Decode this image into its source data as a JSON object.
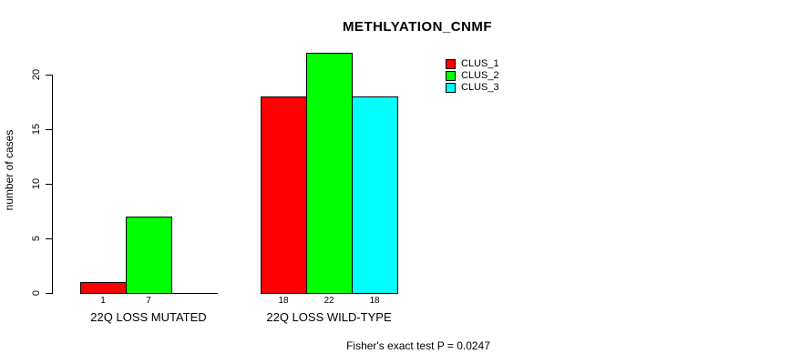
{
  "chart_data": {
    "type": "bar",
    "title": "METHLYATION_CNMF",
    "ylabel": "number of cases",
    "xlabel": "",
    "annotation": "Fisher's exact test P = 0.0247",
    "categories": [
      "22Q LOSS MUTATED",
      "22Q LOSS WILD-TYPE"
    ],
    "series": [
      {
        "name": "CLUS_1",
        "color": "#ff0000",
        "values": [
          1,
          18
        ]
      },
      {
        "name": "CLUS_2",
        "color": "#00ff00",
        "values": [
          7,
          22
        ]
      },
      {
        "name": "CLUS_3",
        "color": "#00ffff",
        "values": [
          0,
          18
        ]
      }
    ],
    "bar_value_labels": [
      [
        "1",
        "7",
        ""
      ],
      [
        "18",
        "22",
        "18"
      ]
    ],
    "yticks": [
      0,
      5,
      10,
      15,
      20
    ],
    "ylim": [
      0,
      22
    ],
    "grid": false,
    "legend_position": "top-right",
    "bar_border_color": "#000000",
    "background_color": "#ffffff"
  }
}
